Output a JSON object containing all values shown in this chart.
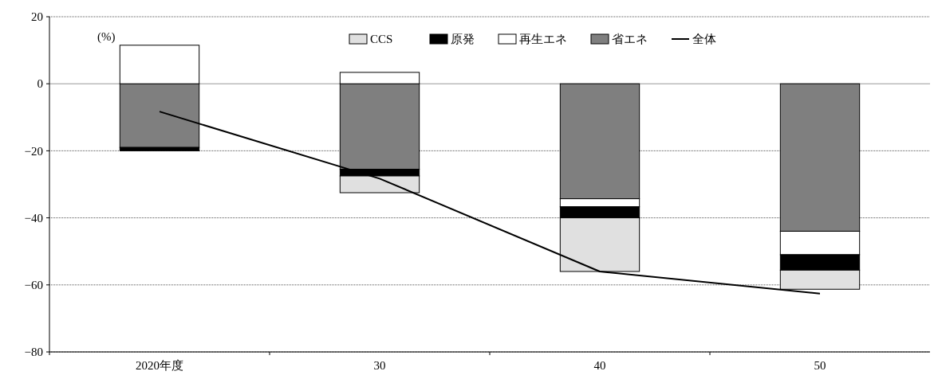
{
  "chart_data": {
    "type": "bar",
    "stacked": true,
    "categories": [
      "2020年度",
      "30",
      "40",
      "50"
    ],
    "series": [
      {
        "name": "省エネ",
        "color": "#7f7f7f",
        "values": [
          -19.0,
          -25.5,
          -34.3,
          -44.0
        ]
      },
      {
        "name": "再生エネ",
        "color": "#ffffff",
        "values": [
          11.5,
          3.4,
          -2.4,
          -7.0
        ]
      },
      {
        "name": "原発",
        "color": "#000000",
        "values": [
          -1.0,
          -2.0,
          -3.3,
          -4.6
        ]
      },
      {
        "name": "CCS",
        "color": "#e0e0e0",
        "values": [
          null,
          -5.0,
          -16.0,
          -5.7
        ]
      },
      {
        "name": "全体",
        "type": "line",
        "color": "#000000",
        "values": [
          -8.3,
          -28.3,
          -56.0,
          -62.6
        ]
      }
    ],
    "ylim": [
      -80,
      20
    ],
    "yticks": [
      -80,
      -60,
      -40,
      -20,
      0,
      20
    ],
    "grid": "y",
    "legend": "top",
    "annotations": [
      "(%)"
    ]
  }
}
